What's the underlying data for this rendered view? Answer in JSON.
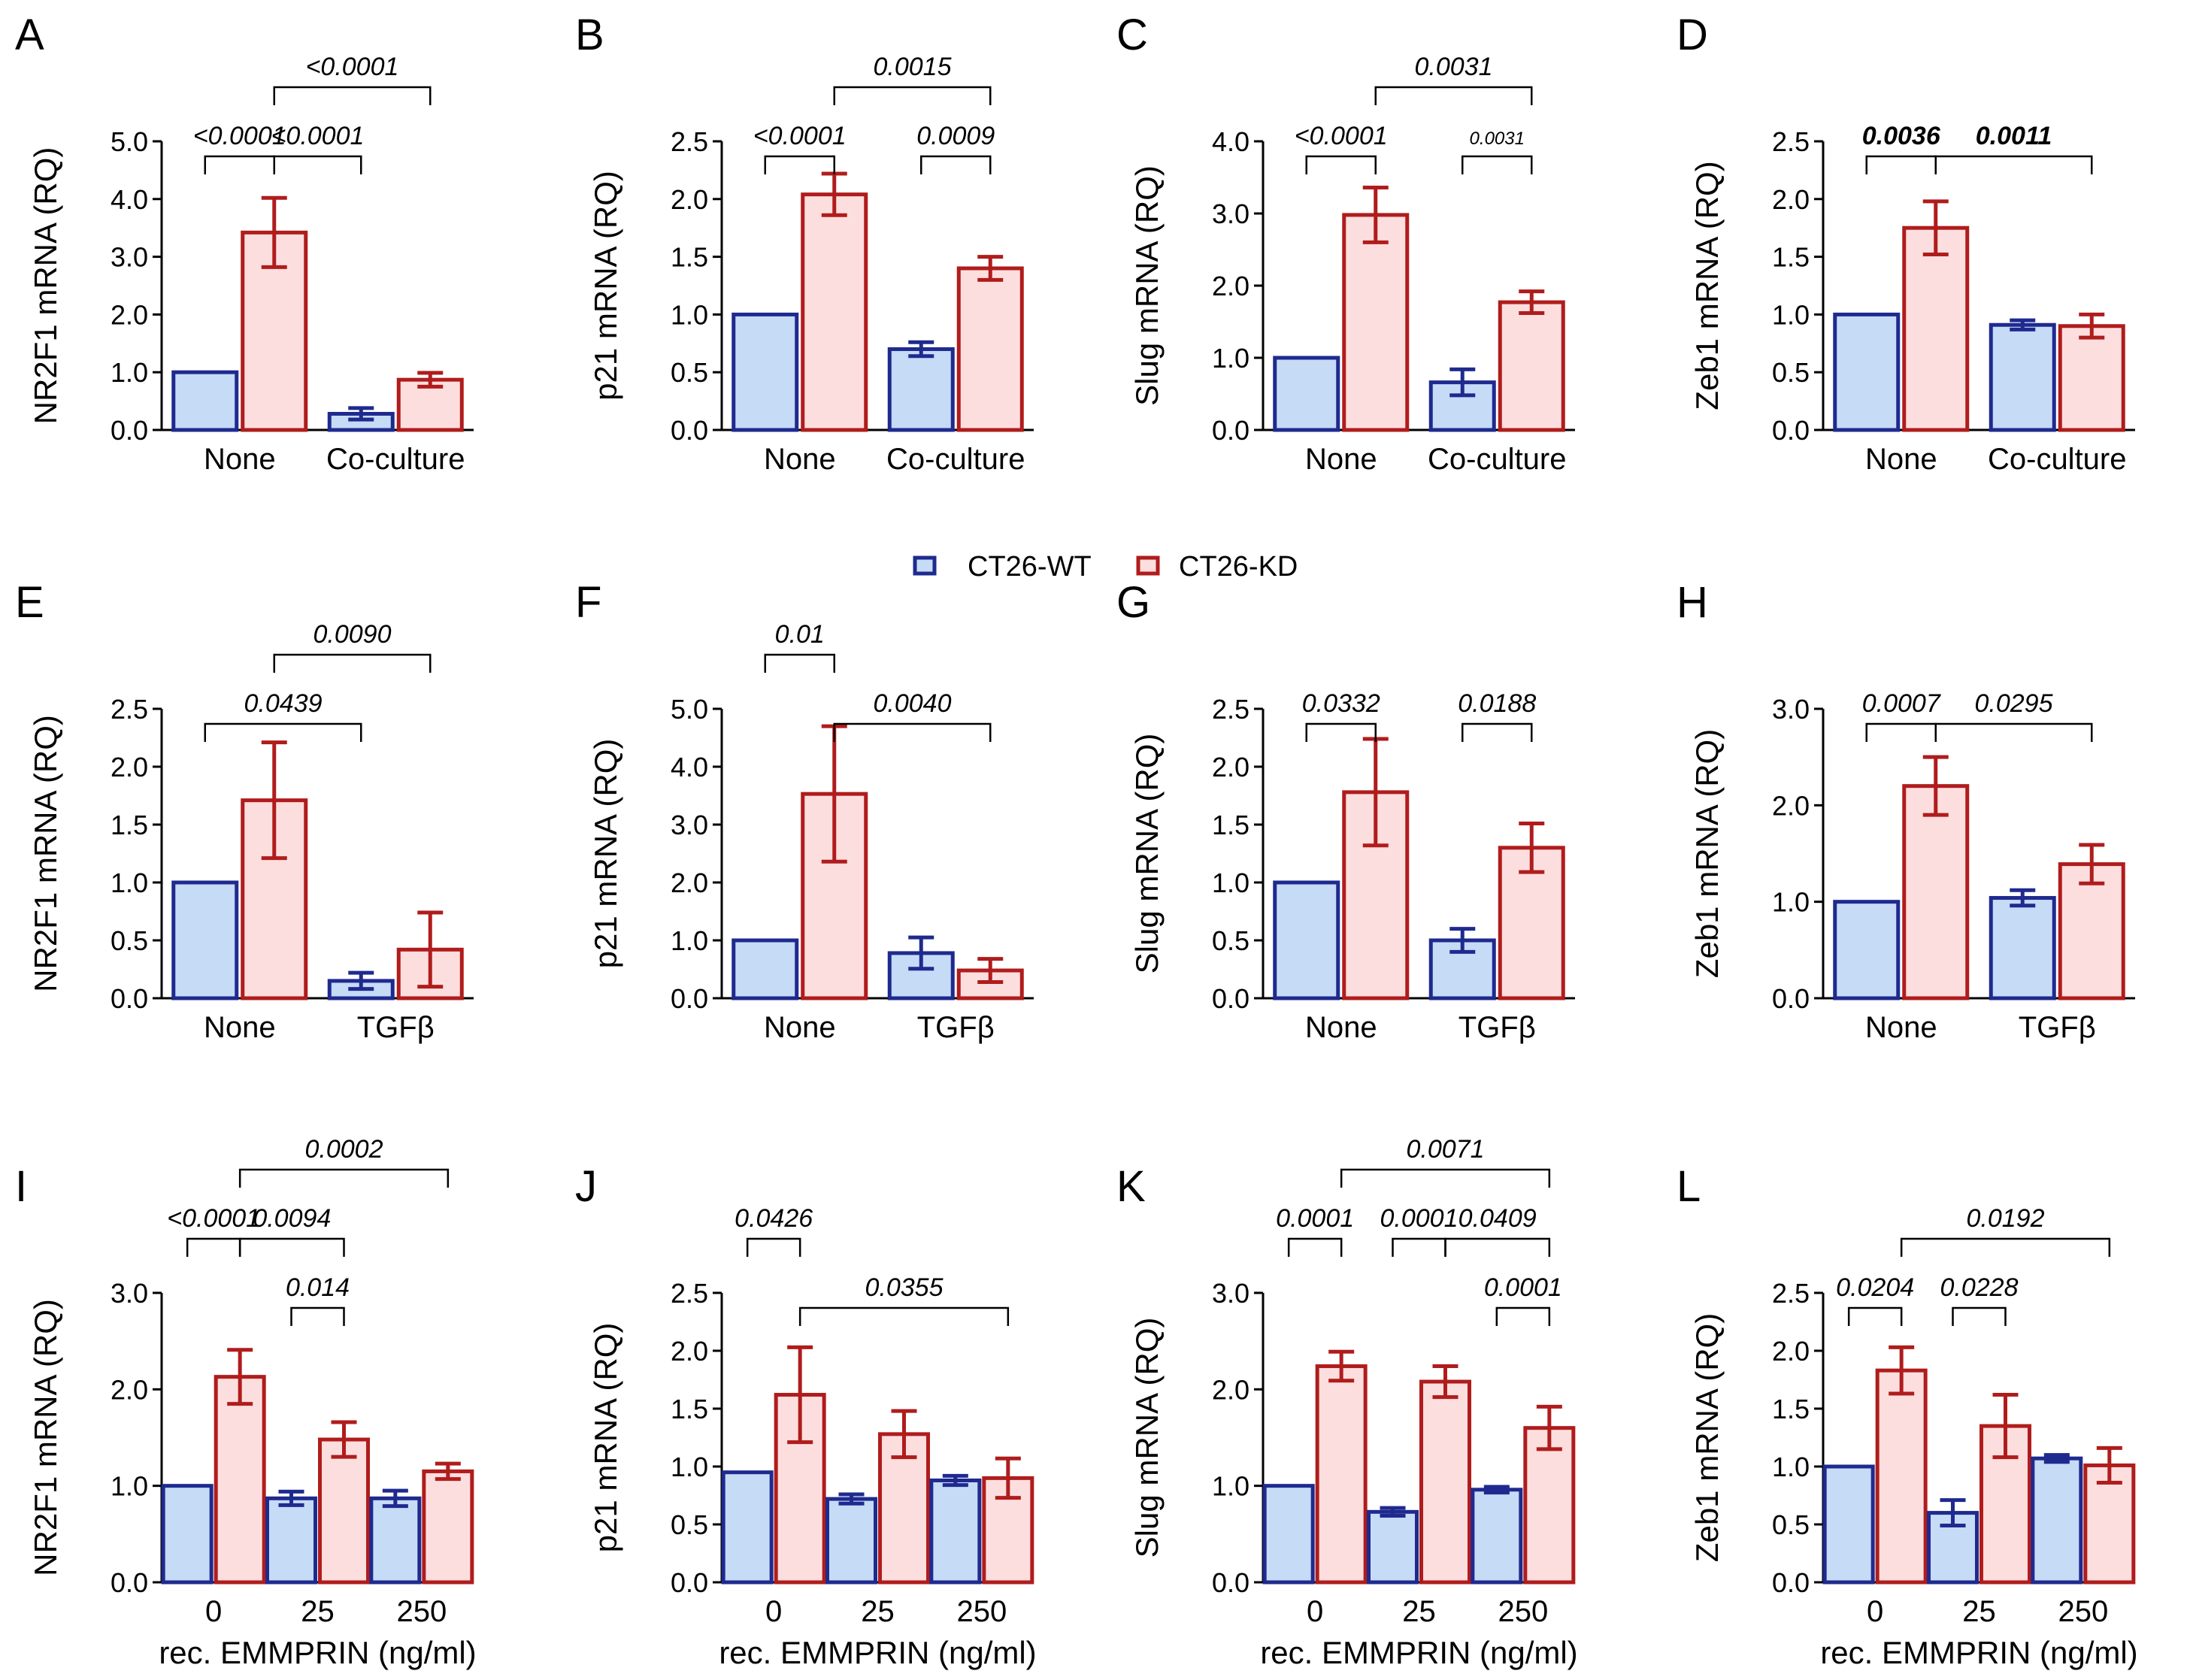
{
  "legend": {
    "items": [
      {
        "label": "CT26-WT",
        "fill": "#c6dbf6",
        "stroke": "#1f2a8f"
      },
      {
        "label": "CT26-KD",
        "fill": "#fddede",
        "stroke": "#b01c1c"
      }
    ]
  },
  "chart_data": [
    {
      "type": "bar",
      "letter": "A",
      "ylabel": "NR2F1 mRNA (RQ)",
      "xlabel": "",
      "categories": [
        "None",
        "Co-culture"
      ],
      "ylim": [
        0,
        5
      ],
      "yticks": [
        0,
        1,
        2,
        3,
        4,
        5
      ],
      "ytick_labels": [
        "0.0",
        "1.0",
        "2.0",
        "3.0",
        "4.0",
        "5.0"
      ],
      "series": [
        {
          "name": "CT26-WT",
          "values": [
            1.0,
            0.28
          ],
          "errors": [
            0,
            0.1
          ]
        },
        {
          "name": "CT26-KD",
          "values": [
            3.42,
            0.87
          ],
          "errors": [
            0.6,
            0.12
          ]
        }
      ],
      "annotations": [
        {
          "label": "<0.0001",
          "from": [
            0,
            0
          ],
          "to": [
            0,
            1
          ],
          "level": 1
        },
        {
          "label": "<0.0001",
          "from": [
            0,
            1
          ],
          "to": [
            1,
            0
          ],
          "level": 1
        },
        {
          "label": "<0.0001",
          "from": [
            0,
            1
          ],
          "to": [
            1,
            1
          ],
          "level": 2
        }
      ]
    },
    {
      "type": "bar",
      "letter": "B",
      "ylabel": "p21 mRNA (RQ)",
      "xlabel": "",
      "categories": [
        "None",
        "Co-culture"
      ],
      "ylim": [
        0,
        2.5
      ],
      "yticks": [
        0,
        0.5,
        1,
        1.5,
        2,
        2.5
      ],
      "ytick_labels": [
        "0.0",
        "0.5",
        "1.0",
        "1.5",
        "2.0",
        "2.5"
      ],
      "series": [
        {
          "name": "CT26-WT",
          "values": [
            1.0,
            0.7
          ],
          "errors": [
            0,
            0.06
          ]
        },
        {
          "name": "CT26-KD",
          "values": [
            2.04,
            1.4
          ],
          "errors": [
            0.18,
            0.1
          ]
        }
      ],
      "annotations": [
        {
          "label": "<0.0001",
          "from": [
            0,
            0
          ],
          "to": [
            0,
            1
          ],
          "level": 1
        },
        {
          "label": "0.0009",
          "from": [
            1,
            0
          ],
          "to": [
            1,
            1
          ],
          "level": 1
        },
        {
          "label": "0.0015",
          "from": [
            0,
            1
          ],
          "to": [
            1,
            1
          ],
          "level": 2
        }
      ]
    },
    {
      "type": "bar",
      "letter": "C",
      "ylabel": "Slug mRNA (RQ)",
      "xlabel": "",
      "categories": [
        "None",
        "Co-culture"
      ],
      "ylim": [
        0,
        4
      ],
      "yticks": [
        0,
        1,
        2,
        3,
        4
      ],
      "ytick_labels": [
        "0.0",
        "1.0",
        "2.0",
        "3.0",
        "4.0"
      ],
      "series": [
        {
          "name": "CT26-WT",
          "values": [
            1.0,
            0.66
          ],
          "errors": [
            0,
            0.18
          ]
        },
        {
          "name": "CT26-KD",
          "values": [
            2.98,
            1.77
          ],
          "errors": [
            0.38,
            0.15
          ]
        }
      ],
      "annotations": [
        {
          "label": "<0.0001",
          "from": [
            0,
            0
          ],
          "to": [
            0,
            1
          ],
          "level": 1
        },
        {
          "label": "0.0031",
          "from": [
            1,
            0
          ],
          "to": [
            1,
            1
          ],
          "level": 1,
          "small": true
        },
        {
          "label": "0.0031",
          "from": [
            0,
            1
          ],
          "to": [
            1,
            1
          ],
          "level": 2
        }
      ]
    },
    {
      "type": "bar",
      "letter": "D",
      "ylabel": "Zeb1 mRNA (RQ)",
      "xlabel": "",
      "categories": [
        "None",
        "Co-culture"
      ],
      "ylim": [
        0,
        2.5
      ],
      "yticks": [
        0,
        0.5,
        1,
        1.5,
        2,
        2.5
      ],
      "ytick_labels": [
        "0.0",
        "0.5",
        "1.0",
        "1.5",
        "2.0",
        "2.5"
      ],
      "series": [
        {
          "name": "CT26-WT",
          "values": [
            1.0,
            0.91
          ],
          "errors": [
            0,
            0.04
          ]
        },
        {
          "name": "CT26-KD",
          "values": [
            1.75,
            0.9
          ],
          "errors": [
            0.23,
            0.1
          ]
        }
      ],
      "annotations": [
        {
          "label": "0.0036",
          "from": [
            0,
            0
          ],
          "to": [
            0,
            1
          ],
          "level": 1,
          "bold": true
        },
        {
          "label": "0.0011",
          "from": [
            0,
            1
          ],
          "to": [
            1,
            1
          ],
          "level": 1,
          "bold": true
        }
      ]
    },
    {
      "type": "bar",
      "letter": "E",
      "ylabel": "NR2F1 mRNA (RQ)",
      "xlabel": "",
      "categories": [
        "None",
        "TGFβ"
      ],
      "ylim": [
        0,
        2.5
      ],
      "yticks": [
        0,
        0.5,
        1,
        1.5,
        2,
        2.5
      ],
      "ytick_labels": [
        "0.0",
        "0.5",
        "1.0",
        "1.5",
        "2.0",
        "2.5"
      ],
      "series": [
        {
          "name": "CT26-WT",
          "values": [
            1.0,
            0.15
          ],
          "errors": [
            0,
            0.07
          ]
        },
        {
          "name": "CT26-KD",
          "values": [
            1.71,
            0.42
          ],
          "errors": [
            0.5,
            0.32
          ]
        }
      ],
      "annotations": [
        {
          "label": "0.0439",
          "from": [
            0,
            0
          ],
          "to": [
            1,
            0
          ],
          "level": 1
        },
        {
          "label": "0.0090",
          "from": [
            0,
            1
          ],
          "to": [
            1,
            1
          ],
          "level": 2
        }
      ]
    },
    {
      "type": "bar",
      "letter": "F",
      "ylabel": "p21 mRNA (RQ)",
      "xlabel": "",
      "categories": [
        "None",
        "TGFβ"
      ],
      "ylim": [
        0,
        5
      ],
      "yticks": [
        0,
        1,
        2,
        3,
        4,
        5
      ],
      "ytick_labels": [
        "0.0",
        "1.0",
        "2.0",
        "3.0",
        "4.0",
        "5.0"
      ],
      "series": [
        {
          "name": "CT26-WT",
          "values": [
            1.0,
            0.78
          ],
          "errors": [
            0,
            0.27
          ]
        },
        {
          "name": "CT26-KD",
          "values": [
            3.53,
            0.48
          ],
          "errors": [
            1.17,
            0.2
          ]
        }
      ],
      "annotations": [
        {
          "label": "0.0040",
          "from": [
            0,
            1
          ],
          "to": [
            1,
            1
          ],
          "level": 1
        },
        {
          "label": "0.01",
          "from": [
            0,
            0
          ],
          "to": [
            0,
            1
          ],
          "level": 2
        }
      ]
    },
    {
      "type": "bar",
      "letter": "G",
      "ylabel": "Slug mRNA (RQ)",
      "xlabel": "",
      "categories": [
        "None",
        "TGFβ"
      ],
      "ylim": [
        0,
        2.5
      ],
      "yticks": [
        0,
        0.5,
        1,
        1.5,
        2,
        2.5
      ],
      "ytick_labels": [
        "0.0",
        "0.5",
        "1.0",
        "1.5",
        "2.0",
        "2.5"
      ],
      "series": [
        {
          "name": "CT26-WT",
          "values": [
            1.0,
            0.5
          ],
          "errors": [
            0,
            0.1
          ]
        },
        {
          "name": "CT26-KD",
          "values": [
            1.78,
            1.3
          ],
          "errors": [
            0.46,
            0.21
          ]
        }
      ],
      "annotations": [
        {
          "label": "0.0332",
          "from": [
            0,
            0
          ],
          "to": [
            0,
            1
          ],
          "level": 1
        },
        {
          "label": "0.0188",
          "from": [
            1,
            0
          ],
          "to": [
            1,
            1
          ],
          "level": 1
        }
      ]
    },
    {
      "type": "bar",
      "letter": "H",
      "ylabel": "Zeb1 mRNA (RQ)",
      "xlabel": "",
      "categories": [
        "None",
        "TGFβ"
      ],
      "ylim": [
        0,
        3
      ],
      "yticks": [
        0,
        1,
        2,
        3
      ],
      "ytick_labels": [
        "0.0",
        "1.0",
        "2.0",
        "3.0"
      ],
      "series": [
        {
          "name": "CT26-WT",
          "values": [
            1.0,
            1.04
          ],
          "errors": [
            0,
            0.08
          ]
        },
        {
          "name": "CT26-KD",
          "values": [
            2.2,
            1.39
          ],
          "errors": [
            0.3,
            0.2
          ]
        }
      ],
      "annotations": [
        {
          "label": "0.0007",
          "from": [
            0,
            0
          ],
          "to": [
            0,
            1
          ],
          "level": 1
        },
        {
          "label": "0.0295",
          "from": [
            0,
            1
          ],
          "to": [
            1,
            1
          ],
          "level": 1
        }
      ]
    },
    {
      "type": "bar",
      "letter": "I",
      "ylabel": "NR2F1 mRNA (RQ)",
      "xlabel": "rec. EMMPRIN (ng/ml)",
      "categories": [
        "0",
        "25",
        "250"
      ],
      "ylim": [
        0,
        3
      ],
      "yticks": [
        0,
        1,
        2,
        3
      ],
      "ytick_labels": [
        "0.0",
        "1.0",
        "2.0",
        "3.0"
      ],
      "series": [
        {
          "name": "CT26-WT",
          "values": [
            1.0,
            0.87,
            0.87
          ],
          "errors": [
            0,
            0.07,
            0.08
          ]
        },
        {
          "name": "CT26-KD",
          "values": [
            2.13,
            1.48,
            1.15
          ],
          "errors": [
            0.28,
            0.18,
            0.08
          ]
        }
      ],
      "annotations": [
        {
          "label": "0.014",
          "from": [
            1,
            0
          ],
          "to": [
            1,
            1
          ],
          "level": 1
        },
        {
          "label": "<0.0001",
          "from": [
            0,
            0
          ],
          "to": [
            0,
            1
          ],
          "level": 2
        },
        {
          "label": "0.0094",
          "from": [
            0,
            1
          ],
          "to": [
            1,
            1
          ],
          "level": 2
        },
        {
          "label": "0.0002",
          "from": [
            0,
            1
          ],
          "to": [
            2,
            1
          ],
          "level": 3
        }
      ]
    },
    {
      "type": "bar",
      "letter": "J",
      "ylabel": "p21 mRNA (RQ)",
      "xlabel": "rec. EMMPRIN (ng/ml)",
      "categories": [
        "0",
        "25",
        "250"
      ],
      "ylim": [
        0,
        2.5
      ],
      "yticks": [
        0,
        0.5,
        1,
        1.5,
        2,
        2.5
      ],
      "ytick_labels": [
        "0.0",
        "0.5",
        "1.0",
        "1.5",
        "2.0",
        "2.5"
      ],
      "series": [
        {
          "name": "CT26-WT",
          "values": [
            0.95,
            0.72,
            0.88
          ],
          "errors": [
            0,
            0.04,
            0.04
          ]
        },
        {
          "name": "CT26-KD",
          "values": [
            1.62,
            1.28,
            0.9
          ],
          "errors": [
            0.41,
            0.2,
            0.17
          ]
        }
      ],
      "annotations": [
        {
          "label": "0.0355",
          "from": [
            0,
            1
          ],
          "to": [
            2,
            1
          ],
          "level": 1
        },
        {
          "label": "0.0426",
          "from": [
            0,
            0
          ],
          "to": [
            0,
            1
          ],
          "level": 2
        }
      ]
    },
    {
      "type": "bar",
      "letter": "K",
      "ylabel": "Slug mRNA (RQ)",
      "xlabel": "rec. EMMPRIN (ng/ml)",
      "categories": [
        "0",
        "25",
        "250"
      ],
      "ylim": [
        0,
        3
      ],
      "yticks": [
        0,
        1,
        2,
        3
      ],
      "ytick_labels": [
        "0.0",
        "1.0",
        "2.0",
        "3.0"
      ],
      "series": [
        {
          "name": "CT26-WT",
          "values": [
            1.0,
            0.73,
            0.96
          ],
          "errors": [
            0,
            0.04,
            0.03
          ]
        },
        {
          "name": "CT26-KD",
          "values": [
            2.24,
            2.08,
            1.6
          ],
          "errors": [
            0.15,
            0.16,
            0.22
          ]
        }
      ],
      "annotations": [
        {
          "label": "0.0001",
          "from": [
            2,
            0
          ],
          "to": [
            2,
            1
          ],
          "level": 1
        },
        {
          "label": "0.0001",
          "from": [
            0,
            0
          ],
          "to": [
            0,
            1
          ],
          "level": 2
        },
        {
          "label": "0.0001",
          "from": [
            1,
            0
          ],
          "to": [
            1,
            1
          ],
          "level": 2
        },
        {
          "label": "0.0409",
          "from": [
            1,
            1
          ],
          "to": [
            2,
            1
          ],
          "level": 2
        },
        {
          "label": "0.0071",
          "from": [
            0,
            1
          ],
          "to": [
            2,
            1
          ],
          "level": 3
        }
      ]
    },
    {
      "type": "bar",
      "letter": "L",
      "ylabel": "Zeb1  mRNA (RQ)",
      "xlabel": "rec. EMMPRIN (ng/ml)",
      "categories": [
        "0",
        "25",
        "250"
      ],
      "ylim": [
        0,
        2.5
      ],
      "yticks": [
        0,
        0.5,
        1,
        1.5,
        2,
        2.5
      ],
      "ytick_labels": [
        "0.0",
        "0.5",
        "1.0",
        "1.5",
        "2.0",
        "2.5"
      ],
      "series": [
        {
          "name": "CT26-WT",
          "values": [
            1.0,
            0.6,
            1.07
          ],
          "errors": [
            0,
            0.11,
            0.03
          ]
        },
        {
          "name": "CT26-KD",
          "values": [
            1.83,
            1.35,
            1.01
          ],
          "errors": [
            0.2,
            0.27,
            0.15
          ]
        }
      ],
      "annotations": [
        {
          "label": "0.0204",
          "from": [
            0,
            0
          ],
          "to": [
            0,
            1
          ],
          "level": 1
        },
        {
          "label": "0.0228",
          "from": [
            1,
            0
          ],
          "to": [
            1,
            1
          ],
          "level": 1
        },
        {
          "label": "0.0192",
          "from": [
            0,
            1
          ],
          "to": [
            2,
            1
          ],
          "level": 2
        }
      ]
    }
  ]
}
